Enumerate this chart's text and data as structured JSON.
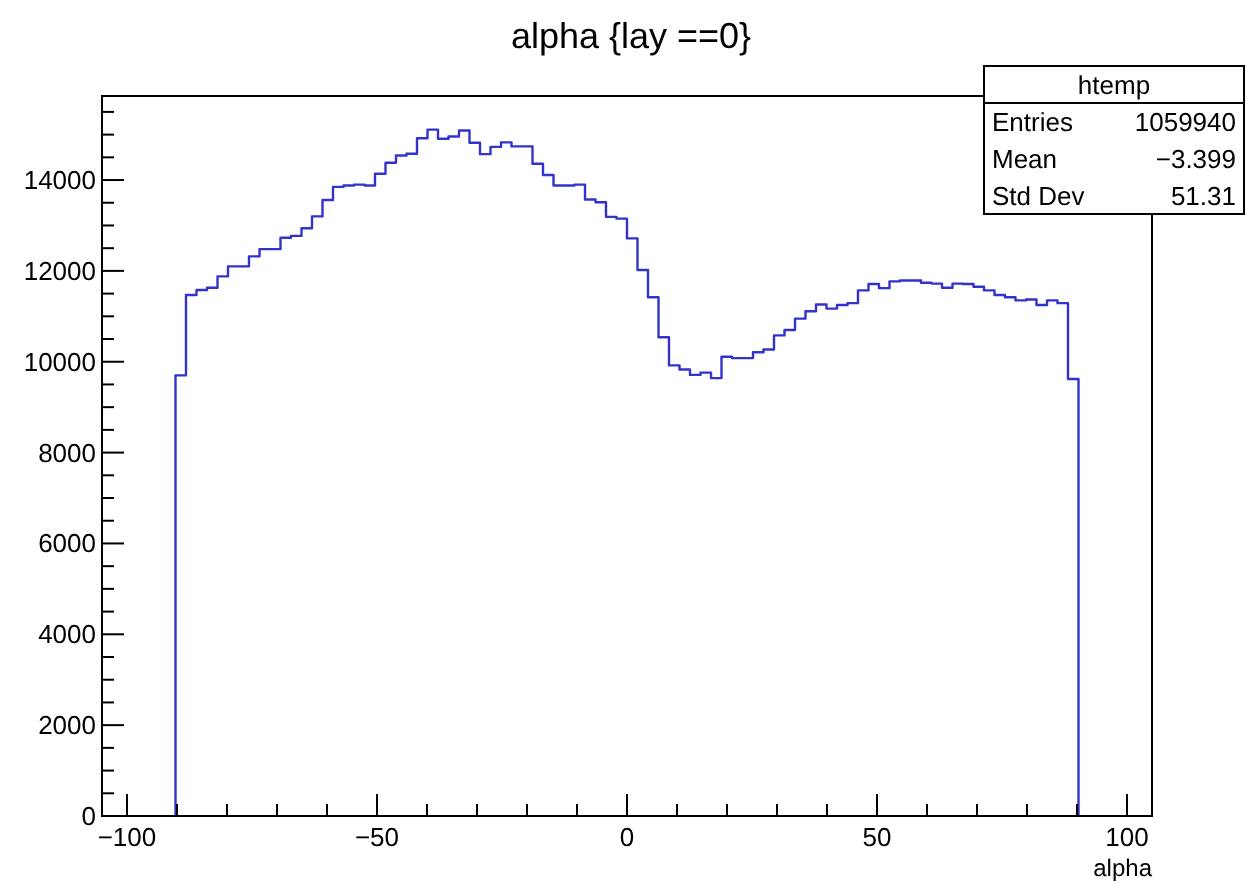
{
  "chart_data": {
    "type": "histogram",
    "title": "alpha {lay ==0}",
    "xlabel": "alpha",
    "bins": [
      -90.3,
      -88.2,
      -86.1,
      -84,
      -81.9,
      -79.8,
      -77.7,
      -75.6,
      -73.5,
      -71.4,
      -69.3,
      -67.2,
      -65.1,
      -63,
      -60.9,
      -58.8,
      -56.7,
      -54.6,
      -52.5,
      -50.4,
      -48.3,
      -46.2,
      -44.1,
      -42,
      -39.9,
      -37.8,
      -35.7,
      -33.6,
      -31.5,
      -29.4,
      -27.3,
      -25.2,
      -23.1,
      -21,
      -18.9,
      -16.8,
      -14.7,
      -12.6,
      -10.5,
      -8.4,
      -6.3,
      -4.2,
      -2.1,
      0,
      2.1,
      4.2,
      6.3,
      8.4,
      10.5,
      12.6,
      14.7,
      16.8,
      18.9,
      21,
      23.1,
      25.2,
      27.3,
      29.4,
      31.5,
      33.6,
      35.7,
      37.8,
      39.9,
      42,
      44.1,
      46.2,
      48.3,
      50.4,
      52.5,
      54.6,
      56.7,
      58.8,
      60.9,
      63,
      65.1,
      67.2,
      69.3,
      71.4,
      73.5,
      75.6,
      77.7,
      79.8,
      81.9,
      84,
      86.1,
      88.2,
      90.3
    ],
    "values": [
      9700,
      11470,
      11580,
      11630,
      11880,
      12100,
      12100,
      12320,
      12480,
      12480,
      12730,
      12770,
      12940,
      13200,
      13560,
      13850,
      13880,
      13900,
      13880,
      14140,
      14380,
      14540,
      14580,
      14920,
      15110,
      14910,
      14960,
      15090,
      14820,
      14570,
      14730,
      14830,
      14740,
      14740,
      14360,
      14110,
      13880,
      13880,
      13900,
      13570,
      13510,
      13190,
      13150,
      12715,
      12020,
      11420,
      10540,
      9920,
      9830,
      9710,
      9760,
      9640,
      10110,
      10080,
      10080,
      10210,
      10270,
      10580,
      10700,
      10950,
      11110,
      11260,
      11170,
      11250,
      11290,
      11570,
      11710,
      11620,
      11770,
      11790,
      11790,
      11740,
      11720,
      11630,
      11720,
      11710,
      11650,
      11570,
      11470,
      11420,
      11350,
      11370,
      11250,
      11350,
      11290,
      9620
    ],
    "color": "#3333cc",
    "xlim": [
      -105,
      105
    ],
    "xticks": [
      {
        "value": -100,
        "label": "−100"
      },
      {
        "value": -90,
        "label": null
      },
      {
        "value": -80,
        "label": null
      },
      {
        "value": -70,
        "label": null
      },
      {
        "value": -60,
        "label": null
      },
      {
        "value": -50,
        "label": "−50"
      },
      {
        "value": -40,
        "label": null
      },
      {
        "value": -30,
        "label": null
      },
      {
        "value": -20,
        "label": null
      },
      {
        "value": -10,
        "label": null
      },
      0,
      {
        "value": 10,
        "label": null
      },
      {
        "value": 20,
        "label": null
      },
      {
        "value": 30,
        "label": null
      },
      {
        "value": 40,
        "label": null
      },
      50,
      {
        "value": 60,
        "label": null
      },
      {
        "value": 70,
        "label": null
      },
      {
        "value": 80,
        "label": null
      },
      {
        "value": 90,
        "label": null
      },
      100
    ],
    "ylim": [
      0,
      15850
    ],
    "yticks": [
      0,
      {
        "value": 500,
        "label": null
      },
      {
        "value": 1000,
        "label": null
      },
      {
        "value": 1500,
        "label": null
      },
      2000,
      {
        "value": 2500,
        "label": null
      },
      {
        "value": 3000,
        "label": null
      },
      {
        "value": 3500,
        "label": null
      },
      4000,
      {
        "value": 4500,
        "label": null
      },
      {
        "value": 5000,
        "label": null
      },
      {
        "value": 5500,
        "label": null
      },
      6000,
      {
        "value": 6500,
        "label": null
      },
      {
        "value": 7000,
        "label": null
      },
      {
        "value": 7500,
        "label": null
      },
      8000,
      {
        "value": 8500,
        "label": null
      },
      {
        "value": 9000,
        "label": null
      },
      {
        "value": 9500,
        "label": null
      },
      10000,
      {
        "value": 10500,
        "label": null
      },
      {
        "value": 11000,
        "label": null
      },
      {
        "value": 11500,
        "label": null
      },
      12000,
      {
        "value": 12500,
        "label": null
      },
      {
        "value": 13000,
        "label": null
      },
      {
        "value": 13500,
        "label": null
      },
      14000,
      {
        "value": 14500,
        "label": null
      },
      {
        "value": 15000,
        "label": null
      },
      {
        "value": 15500,
        "label": null
      }
    ],
    "annotations": [
      "htemp",
      "Entries",
      "1059940",
      "Mean",
      "−3.399",
      "Std Dev",
      "51.31"
    ]
  }
}
